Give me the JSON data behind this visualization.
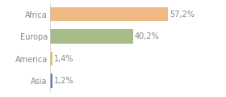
{
  "categories": [
    "Asia",
    "America",
    "Europa",
    "Africa"
  ],
  "values": [
    1.2,
    1.4,
    40.2,
    57.2
  ],
  "bar_colors": [
    "#5b7dbe",
    "#e8c44a",
    "#a8bc8a",
    "#f0b882"
  ],
  "labels": [
    "1,2%",
    "1,4%",
    "40,2%",
    "57,2%"
  ],
  "xlim": [
    0,
    72
  ],
  "background_color": "#ffffff",
  "label_fontsize": 7.0,
  "tick_fontsize": 7.0,
  "bar_height": 0.65,
  "label_color": "#888888",
  "tick_color": "#888888"
}
